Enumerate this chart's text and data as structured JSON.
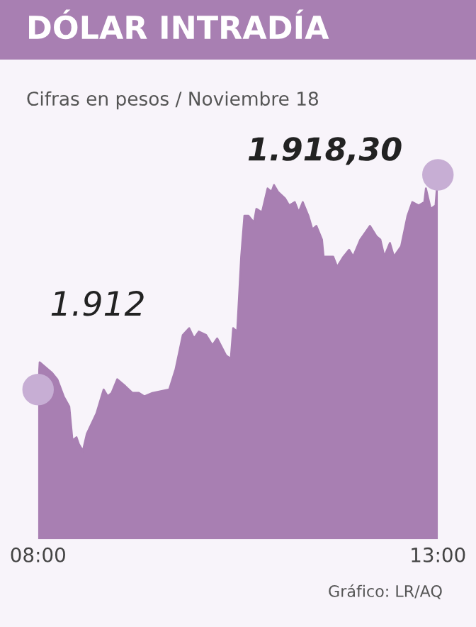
{
  "chart_data": {
    "type": "area",
    "title": "DÓLAR INTRADÍA",
    "subtitle": "Cifras en pesos / Noviembre 18",
    "annotations": [
      "Gráfico: LR/AQ"
    ],
    "x": [
      8.0,
      8.02,
      8.17,
      8.24,
      8.32,
      8.39,
      8.43,
      8.48,
      8.51,
      8.56,
      8.61,
      8.73,
      8.82,
      8.87,
      8.92,
      8.99,
      9.09,
      9.18,
      9.26,
      9.33,
      9.43,
      9.64,
      9.72,
      9.81,
      9.89,
      9.95,
      10.01,
      10.1,
      10.18,
      10.24,
      10.35,
      10.41,
      10.44,
      10.49,
      10.54,
      10.58,
      10.63,
      10.7,
      10.73,
      10.8,
      10.87,
      10.92,
      10.95,
      11.0,
      11.09,
      11.14,
      11.21,
      11.26,
      11.31,
      11.38,
      11.43,
      11.48,
      11.55,
      11.57,
      11.69,
      11.74,
      11.82,
      11.89,
      11.94,
      12.03,
      12.15,
      12.23,
      12.28,
      12.33,
      12.4,
      12.45,
      12.54,
      12.62,
      12.68,
      12.76,
      12.83,
      12.85,
      12.91,
      12.97,
      13.0
    ],
    "series": [
      {
        "color": "#a87fb2",
        "values": [
          1912.0,
          1912.8,
          1912.5,
          1912.3,
          1911.8,
          1911.5,
          1910.5,
          1910.6,
          1910.4,
          1910.2,
          1910.7,
          1911.3,
          1912.0,
          1911.8,
          1911.9,
          1912.3,
          1912.1,
          1911.9,
          1911.9,
          1911.8,
          1911.9,
          1912.0,
          1912.6,
          1913.6,
          1913.8,
          1913.5,
          1913.7,
          1913.6,
          1913.3,
          1913.5,
          1913.0,
          1912.9,
          1913.8,
          1913.7,
          1915.9,
          1917.1,
          1917.1,
          1916.9,
          1917.3,
          1917.2,
          1917.9,
          1917.8,
          1918.0,
          1917.8,
          1917.6,
          1917.4,
          1917.5,
          1917.2,
          1917.5,
          1917.1,
          1916.7,
          1916.8,
          1916.4,
          1915.9,
          1915.9,
          1915.6,
          1915.9,
          1916.1,
          1915.9,
          1916.4,
          1916.8,
          1916.5,
          1916.4,
          1915.9,
          1916.3,
          1915.9,
          1916.2,
          1917.1,
          1917.5,
          1917.4,
          1917.5,
          1917.9,
          1917.3,
          1917.4,
          1918.3
        ],
        "value_labels": [
          "1.912",
          null,
          null,
          null,
          null,
          null,
          null,
          null,
          null,
          null,
          null,
          null,
          null,
          null,
          null,
          null,
          null,
          null,
          null,
          null,
          null,
          null,
          null,
          null,
          null,
          null,
          null,
          null,
          null,
          null,
          null,
          null,
          null,
          null,
          null,
          null,
          null,
          null,
          null,
          null,
          null,
          null,
          null,
          null,
          null,
          null,
          null,
          null,
          null,
          null,
          null,
          null,
          null,
          null,
          null,
          null,
          null,
          null,
          null,
          null,
          null,
          null,
          null,
          null,
          null,
          null,
          null,
          null,
          null,
          null,
          null,
          null,
          null,
          null,
          "1.918,30"
        ]
      }
    ],
    "xlim": [
      8,
      13
    ],
    "xticks": [
      {
        "value": 8,
        "label": "08:00"
      },
      {
        "value": 13,
        "label": "13:00"
      }
    ],
    "grid": false,
    "legend": false
  }
}
